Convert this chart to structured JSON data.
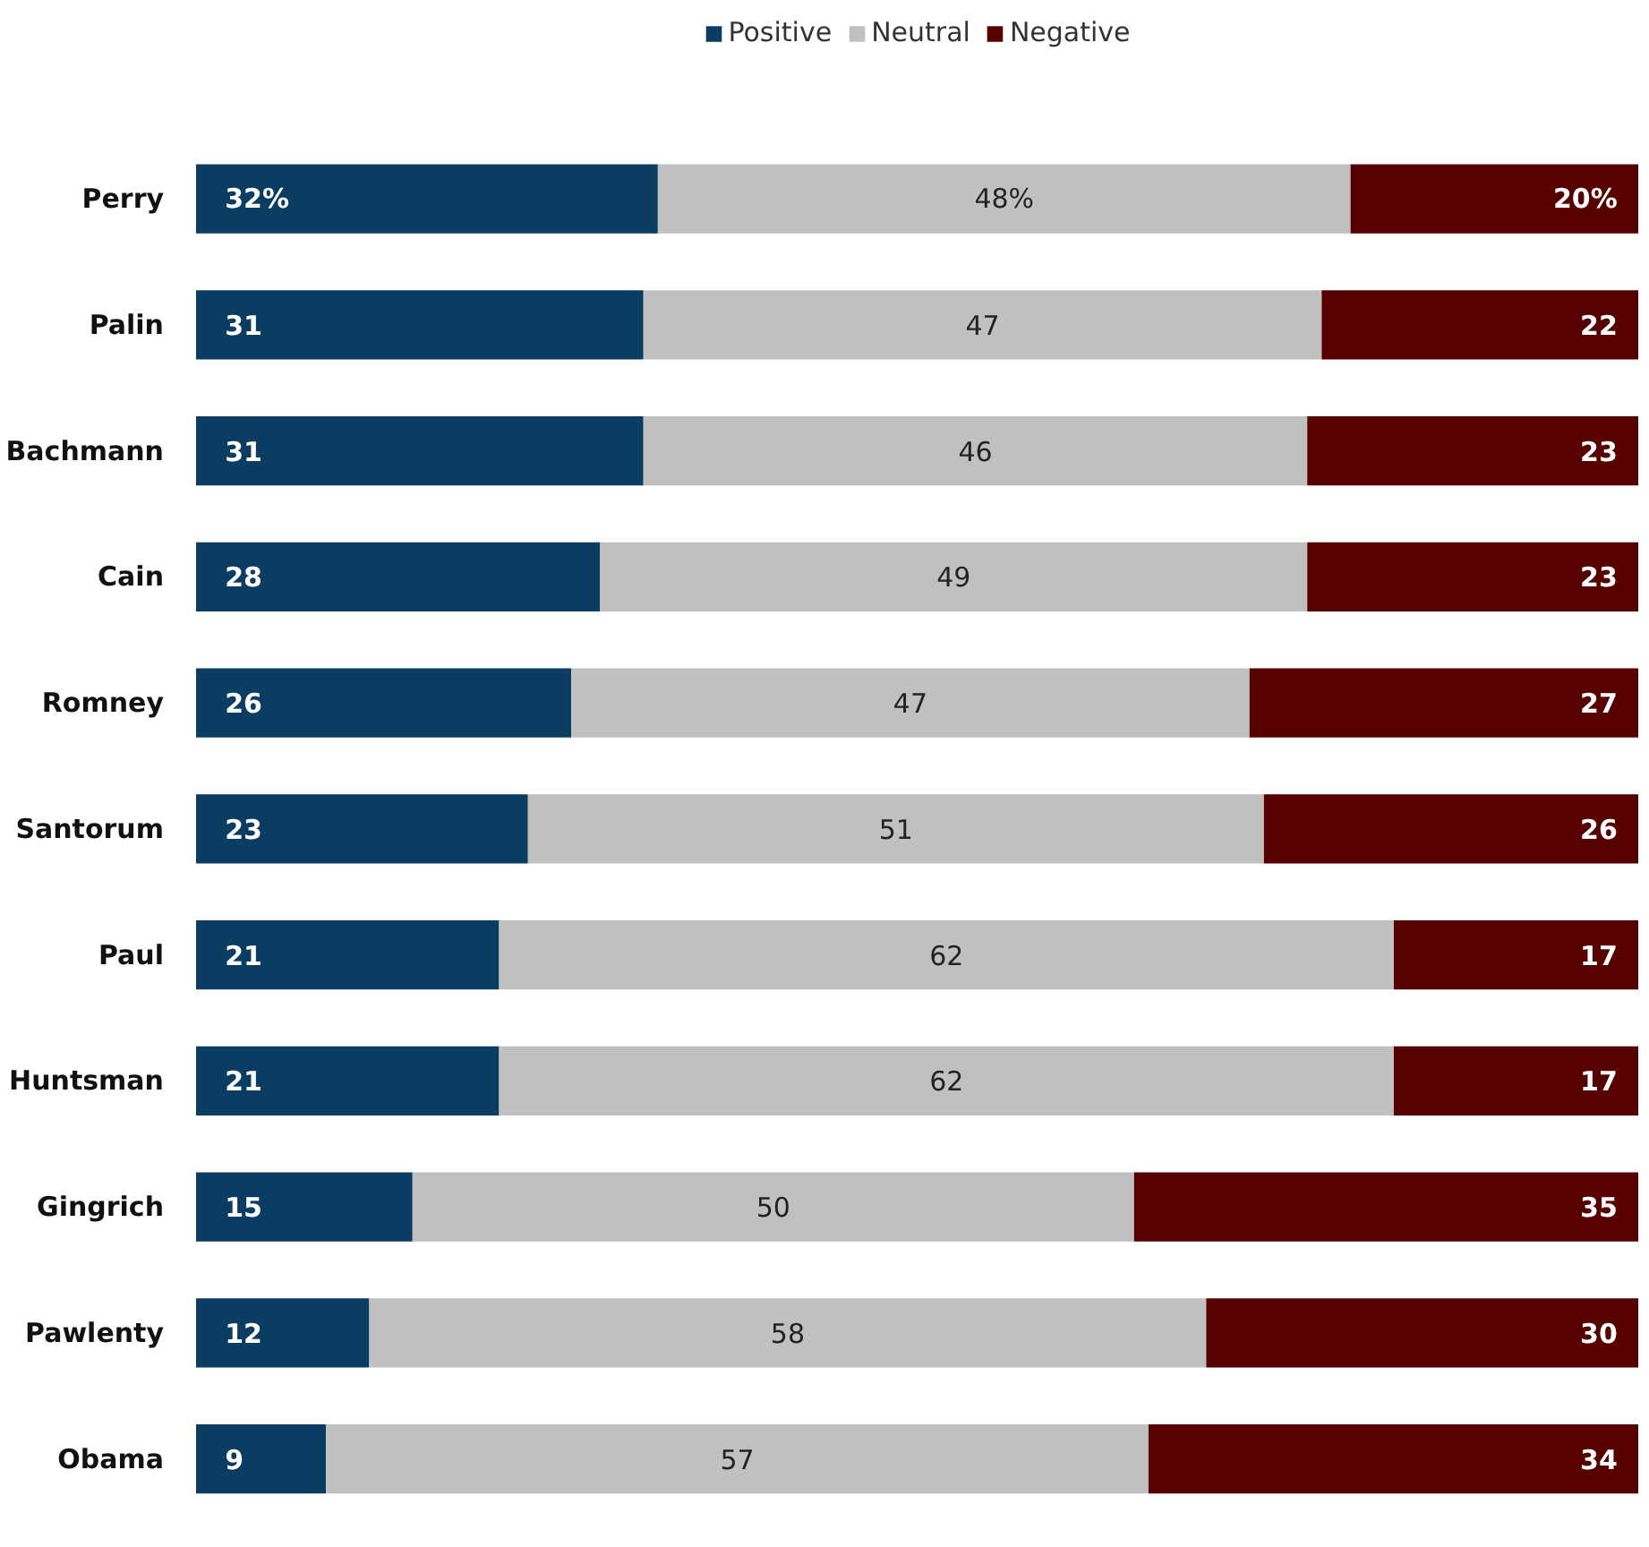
{
  "chart_data": {
    "type": "bar",
    "orientation": "horizontal",
    "stacked": true,
    "legend": "top",
    "categories": [
      "Perry",
      "Palin",
      "Bachmann",
      "Cain",
      "Romney",
      "Santorum",
      "Paul",
      "Huntsman",
      "Gingrich",
      "Pawlenty",
      "Obama"
    ],
    "series": [
      {
        "name": "Positive",
        "color": "#0b3c61",
        "values": [
          32,
          31,
          31,
          28,
          26,
          23,
          21,
          21,
          15,
          12,
          9
        ],
        "value_labels": [
          "32%",
          "31",
          "31",
          "28",
          "26",
          "23",
          "21",
          "21",
          "15",
          "12",
          "9"
        ]
      },
      {
        "name": "Neutral",
        "color": "#c0c0c0",
        "values": [
          48,
          47,
          46,
          49,
          47,
          51,
          62,
          62,
          50,
          58,
          57
        ],
        "value_labels": [
          "48%",
          "47",
          "46",
          "49",
          "47",
          "51",
          "62",
          "62",
          "50",
          "58",
          "57"
        ]
      },
      {
        "name": "Negative",
        "color": "#560000",
        "values": [
          20,
          22,
          23,
          23,
          27,
          26,
          17,
          17,
          35,
          30,
          34
        ],
        "value_labels": [
          "20%",
          "22",
          "23",
          "23",
          "27",
          "26",
          "17",
          "17",
          "35",
          "30",
          "34"
        ]
      }
    ]
  }
}
